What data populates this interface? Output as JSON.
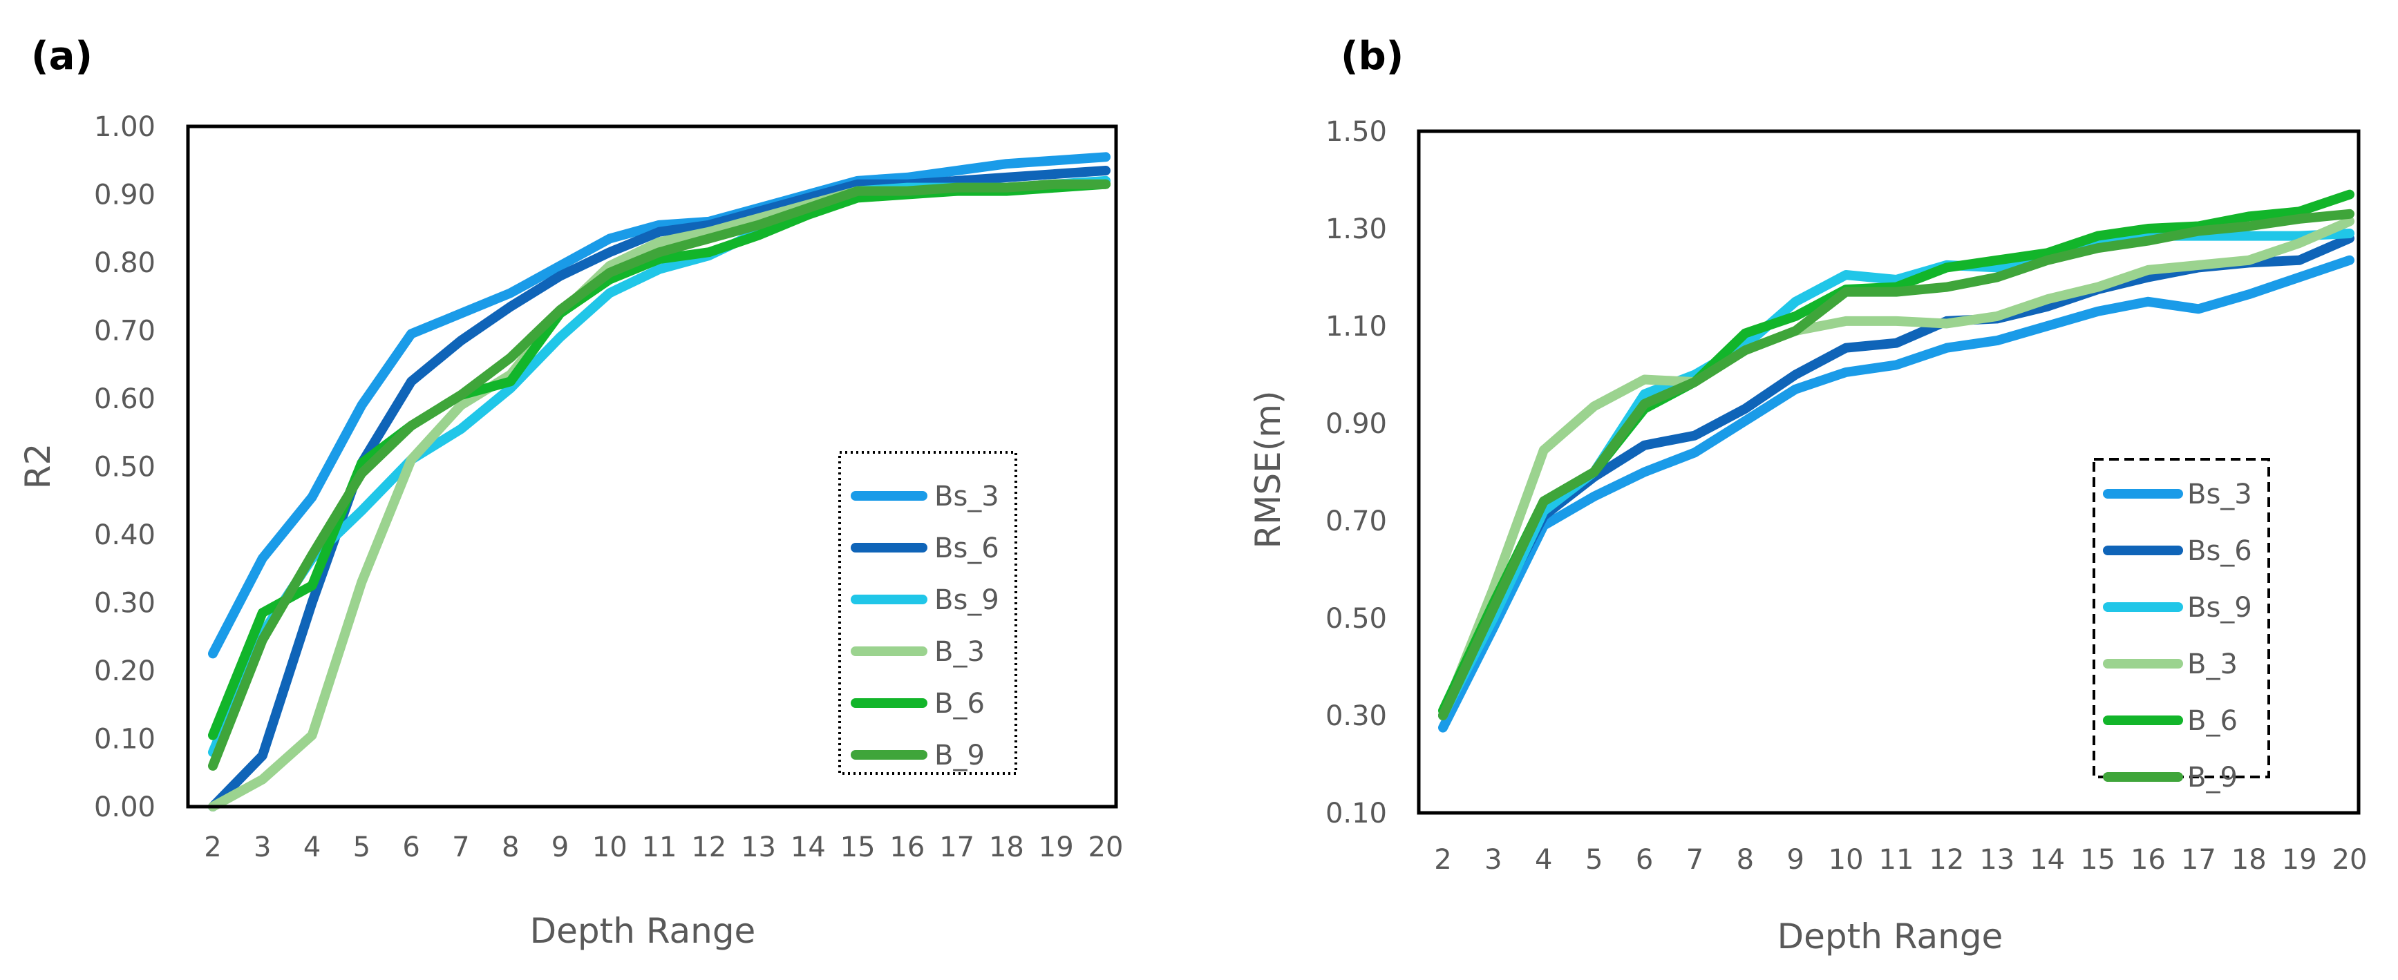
{
  "colors": {
    "Bs_3": "#1a9be8",
    "Bs_6": "#0f64b8",
    "Bs_9": "#20c6e8",
    "B_3": "#9bd38f",
    "B_6": "#12b52a",
    "B_9": "#3fa53a"
  },
  "chart_data": [
    {
      "type": "line",
      "panel_label": "(a)",
      "title": "",
      "xlabel": "Depth Range",
      "ylabel": "R2",
      "x": [
        2,
        3,
        4,
        5,
        6,
        7,
        8,
        9,
        10,
        11,
        12,
        13,
        14,
        15,
        16,
        17,
        18,
        19,
        20
      ],
      "xtick_labels": [
        "2",
        "3",
        "4",
        "5",
        "6",
        "7",
        "8",
        "9",
        "10",
        "11",
        "12",
        "13",
        "14",
        "15",
        "16",
        "17",
        "18",
        "19",
        "20"
      ],
      "ylim": [
        0,
        1.0
      ],
      "yticks": [
        0,
        0.1,
        0.2,
        0.3,
        0.4,
        0.5,
        0.6,
        0.7,
        0.8,
        0.9,
        1.0
      ],
      "ytick_labels": [
        "0.00",
        "0.10",
        "0.20",
        "0.30",
        "0.40",
        "0.50",
        "0.60",
        "0.70",
        "0.80",
        "0.90",
        "1.00"
      ],
      "legend_position": "lower-right",
      "legend_border": "dotted",
      "series": [
        {
          "name": "Bs_3",
          "values": [
            0.225,
            0.365,
            0.455,
            0.59,
            0.695,
            0.725,
            0.755,
            0.795,
            0.835,
            0.855,
            0.86,
            0.88,
            0.9,
            0.92,
            0.925,
            0.935,
            0.945,
            0.95,
            0.955
          ]
        },
        {
          "name": "Bs_6",
          "values": [
            0.0,
            0.075,
            0.3,
            0.505,
            0.625,
            0.685,
            0.735,
            0.78,
            0.815,
            0.845,
            0.855,
            0.875,
            0.895,
            0.915,
            0.915,
            0.92,
            0.925,
            0.93,
            0.935
          ]
        },
        {
          "name": "Bs_9",
          "values": [
            0.08,
            0.255,
            0.365,
            0.435,
            0.51,
            0.555,
            0.615,
            0.69,
            0.755,
            0.79,
            0.81,
            0.845,
            0.875,
            0.905,
            0.91,
            0.91,
            0.91,
            0.915,
            0.92
          ]
        },
        {
          "name": "B_3",
          "values": [
            0.0,
            0.04,
            0.105,
            0.33,
            0.51,
            0.59,
            0.635,
            0.725,
            0.795,
            0.83,
            0.845,
            0.865,
            0.885,
            0.905,
            0.905,
            0.905,
            0.91,
            0.915,
            0.915
          ]
        },
        {
          "name": "B_6",
          "values": [
            0.105,
            0.285,
            0.325,
            0.505,
            0.56,
            0.605,
            0.625,
            0.725,
            0.775,
            0.805,
            0.815,
            0.84,
            0.87,
            0.895,
            0.9,
            0.905,
            0.905,
            0.91,
            0.915
          ]
        },
        {
          "name": "B_9",
          "values": [
            0.06,
            0.245,
            0.37,
            0.49,
            0.56,
            0.605,
            0.66,
            0.73,
            0.785,
            0.815,
            0.835,
            0.855,
            0.88,
            0.905,
            0.905,
            0.91,
            0.91,
            0.915,
            0.915
          ]
        }
      ]
    },
    {
      "type": "line",
      "panel_label": "(b)",
      "title": "",
      "xlabel": "Depth Range",
      "ylabel": "RMSE(m)",
      "x": [
        2,
        3,
        4,
        5,
        6,
        7,
        8,
        9,
        10,
        11,
        12,
        13,
        14,
        15,
        16,
        17,
        18,
        19,
        20
      ],
      "xtick_labels": [
        "2",
        "3",
        "4",
        "5",
        "6",
        "7",
        "8",
        "9",
        "10",
        "11",
        "12",
        "13",
        "14",
        "15",
        "16",
        "17",
        "18",
        "19",
        "20"
      ],
      "ylim": [
        0.1,
        1.5
      ],
      "yticks": [
        0.1,
        0.3,
        0.5,
        0.7,
        0.9,
        1.1,
        1.3,
        1.5
      ],
      "ytick_labels": [
        "0.10",
        "0.30",
        "0.50",
        "0.70",
        "0.90",
        "1.10",
        "1.30",
        "1.50"
      ],
      "legend_position": "lower-right",
      "legend_border": "dashed",
      "series": [
        {
          "name": "Bs_3",
          "values": [
            0.275,
            0.48,
            0.69,
            0.75,
            0.8,
            0.84,
            0.905,
            0.97,
            1.005,
            1.02,
            1.055,
            1.07,
            1.1,
            1.13,
            1.15,
            1.135,
            1.165,
            1.2,
            1.235
          ]
        },
        {
          "name": "Bs_6",
          "values": [
            0.3,
            0.51,
            0.71,
            0.79,
            0.855,
            0.875,
            0.93,
            1.0,
            1.055,
            1.065,
            1.11,
            1.115,
            1.14,
            1.175,
            1.2,
            1.22,
            1.23,
            1.235,
            1.28
          ]
        },
        {
          "name": "Bs_9",
          "values": [
            0.3,
            0.5,
            0.72,
            0.8,
            0.96,
            1.0,
            1.06,
            1.15,
            1.205,
            1.195,
            1.225,
            1.22,
            1.24,
            1.265,
            1.285,
            1.285,
            1.285,
            1.285,
            1.29
          ]
        },
        {
          "name": "B_3",
          "values": [
            0.3,
            0.56,
            0.845,
            0.935,
            0.99,
            0.985,
            1.05,
            1.09,
            1.11,
            1.11,
            1.105,
            1.12,
            1.155,
            1.18,
            1.215,
            1.225,
            1.235,
            1.27,
            1.315
          ]
        },
        {
          "name": "B_6",
          "values": [
            0.31,
            0.53,
            0.74,
            0.8,
            0.93,
            0.985,
            1.085,
            1.12,
            1.175,
            1.18,
            1.22,
            1.235,
            1.25,
            1.285,
            1.3,
            1.305,
            1.325,
            1.335,
            1.37
          ]
        },
        {
          "name": "B_9",
          "values": [
            0.3,
            0.52,
            0.74,
            0.8,
            0.94,
            0.985,
            1.05,
            1.09,
            1.17,
            1.17,
            1.18,
            1.2,
            1.235,
            1.26,
            1.275,
            1.295,
            1.305,
            1.32,
            1.33
          ]
        }
      ]
    }
  ]
}
